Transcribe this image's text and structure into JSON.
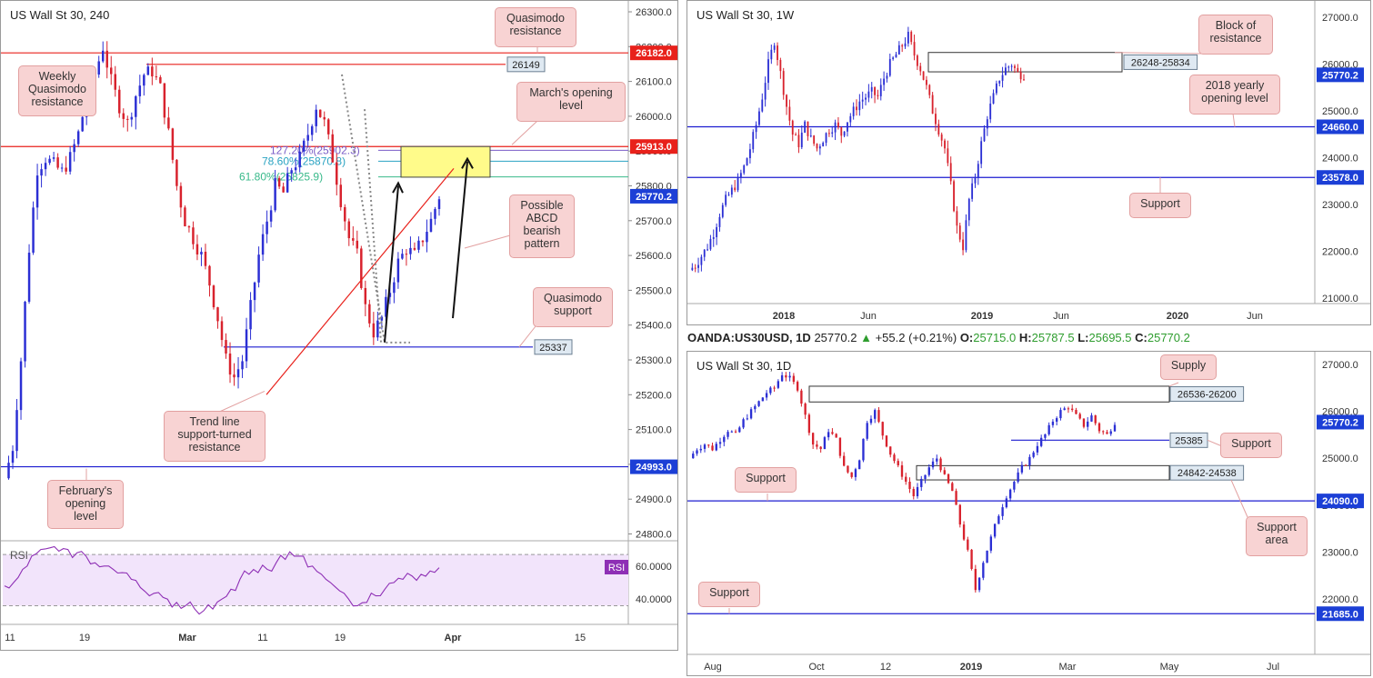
{
  "panels": {
    "h4": {
      "title": "US Wall St 30, 240",
      "price_ticks": [
        "26300.0",
        "26200.0",
        "26100.0",
        "26000.0",
        "25900.0",
        "25800.0",
        "25700.0",
        "25600.0",
        "25500.0",
        "25400.0",
        "25300.0",
        "25200.0",
        "25100.0",
        "25000.0",
        "24900.0",
        "24800.0"
      ],
      "date_ticks": [
        "11",
        "19",
        "Mar",
        "11",
        "19",
        "Apr",
        "15"
      ],
      "price_badges": [
        {
          "value": "26182.0",
          "color": "#e8211b"
        },
        {
          "value": "25913.0",
          "color": "#e8211b"
        },
        {
          "value": "25770.2",
          "color": "#1c3fd6"
        },
        {
          "value": "24993.0",
          "color": "#1c3fd6"
        }
      ],
      "level_tags": [
        "26149",
        "25337"
      ],
      "fib_labels": [
        "127.20%(25902.3)",
        "78.60%(25870.8)",
        "61.80%(25825.9)"
      ],
      "callouts": {
        "quasimodo_resistance": "Quasimodo resistance",
        "weekly_quasimodo": "Weekly Quasimodo resistance",
        "march_open": "March's opening level",
        "abcd": "Possible ABCD bearish pattern",
        "quasimodo_support": "Quasimodo support",
        "trendline": "Trend line support-turned resistance",
        "feb_open": "February's opening level"
      },
      "rsi": {
        "label": "RSI",
        "badge": "RSI",
        "ticks": [
          "60.0000",
          "40.0000"
        ]
      }
    },
    "weekly": {
      "title": "US Wall St 30, 1W",
      "price_ticks": [
        "27000.0",
        "26000.0",
        "25000.0",
        "24000.0",
        "23000.0",
        "22000.0",
        "21000.0"
      ],
      "date_ticks": [
        "2018",
        "Jun",
        "2019",
        "Jun",
        "2020",
        "Jun"
      ],
      "price_badges": [
        {
          "value": "25770.2",
          "color": "#1c3fd6"
        },
        {
          "value": "24660.0",
          "color": "#1c3fd6"
        },
        {
          "value": "23578.0",
          "color": "#1c3fd6"
        }
      ],
      "zone_tag": "26248-25834",
      "callouts": {
        "block": "Block of resistance",
        "yearly_open": "2018 yearly opening level",
        "support": "Support"
      }
    },
    "daily": {
      "title": "US Wall St 30, 1D",
      "ohlc": {
        "symbol": "OANDA:US30USD, 1D",
        "last": "25770.2",
        "change": "+55.2 (+0.21%)",
        "o_label": "O:",
        "o": "25715.0",
        "h_label": "H:",
        "h": "25787.5",
        "l_label": "L:",
        "l": "25695.5",
        "c_label": "C:",
        "c": "25770.2"
      },
      "price_ticks": [
        "27000.0",
        "26000.0",
        "25000.0",
        "24000.0",
        "23000.0",
        "22000.0"
      ],
      "date_ticks": [
        "Aug",
        "Oct",
        "12",
        "2019",
        "Mar",
        "May",
        "Jul"
      ],
      "price_badges": [
        {
          "value": "25770.2",
          "color": "#1c3fd6"
        },
        {
          "value": "24090.0",
          "color": "#1c3fd6"
        },
        {
          "value": "21685.0",
          "color": "#1c3fd6"
        }
      ],
      "zone_tags": [
        "26536-26200",
        "24842-24538"
      ],
      "level_tag": "25385",
      "callouts": {
        "supply": "Supply",
        "support_right": "Support",
        "support_left": "Support",
        "support_area": "Support area",
        "support_bottom": "Support"
      }
    }
  },
  "chart_data": [
    {
      "type": "candlestick",
      "title": "US Wall St 30, 240",
      "x_ticks": [
        "11",
        "19",
        "Mar",
        "11",
        "19",
        "Apr",
        "15"
      ],
      "ylim": [
        24750,
        26320
      ],
      "levels": {
        "quasimodo_resistance": 26182.0,
        "weekly_quasimodo": 26149,
        "march_open": 25913.0,
        "last": 25770.2,
        "quasimodo_support": 25337,
        "february_open": 24993.0
      },
      "fibonacci": {
        "127.2": 25902.3,
        "78.6": 25870.8,
        "61.8": 25825.9
      },
      "close_path": [
        24960,
        25050,
        25300,
        25620,
        25850,
        25880,
        25860,
        25840,
        25880,
        25950,
        26050,
        26120,
        26200,
        26100,
        26030,
        25980,
        26060,
        26120,
        26130,
        26080,
        25950,
        25800,
        25700,
        25650,
        25600,
        25520,
        25420,
        25300,
        25250,
        25300,
        25450,
        25600,
        25700,
        25800,
        25780,
        25850,
        25880,
        25950,
        26030,
        25980,
        25880,
        25760,
        25650,
        25600,
        25450,
        25380,
        25420,
        25500,
        25580,
        25620,
        25600,
        25650,
        25700,
        25770.2
      ],
      "rsi": {
        "ylim": [
          28,
          72
        ],
        "ticks": [
          60,
          40
        ],
        "values": [
          48,
          50,
          58,
          66,
          70,
          71,
          69,
          70,
          68,
          66,
          62,
          60,
          58,
          56,
          52,
          47,
          42,
          44,
          40,
          38,
          36,
          34,
          33,
          34,
          40,
          46,
          52,
          55,
          56,
          58,
          62,
          64,
          66,
          66,
          60,
          55,
          50,
          45,
          40,
          36,
          38,
          42,
          46,
          50,
          52,
          54,
          55,
          57,
          59
        ]
      }
    },
    {
      "type": "candlestick",
      "title": "US Wall St 30, 1W",
      "x_ticks": [
        "2018",
        "Jun",
        "2019",
        "Jun",
        "2020",
        "Jun"
      ],
      "ylim": [
        20900,
        27300
      ],
      "levels": {
        "block_high": 26248,
        "block_low": 25834,
        "yearly_open_2018": 24660.0,
        "support": 23578.0,
        "last": 25770.2
      },
      "close_path": [
        21600,
        21700,
        21900,
        22100,
        22400,
        22800,
        23100,
        23300,
        23500,
        23800,
        24200,
        24700,
        25300,
        26000,
        26500,
        25800,
        25100,
        24500,
        24300,
        24700,
        24400,
        24200,
        24400,
        24600,
        24700,
        24500,
        24800,
        25000,
        25200,
        25300,
        25400,
        25300,
        25700,
        26000,
        26200,
        26400,
        26600,
        26200,
        25900,
        25500,
        25000,
        24600,
        24200,
        23400,
        22500,
        22100,
        23100,
        23600,
        24300,
        24900,
        25300,
        25700,
        25900,
        26000,
        25800,
        25770.2
      ]
    },
    {
      "type": "candlestick",
      "title": "US Wall St 30, 1D",
      "x_ticks": [
        "Aug",
        "Oct",
        "12",
        "2019",
        "Mar",
        "May",
        "Jul"
      ],
      "ylim": [
        21400,
        27200
      ],
      "levels": {
        "supply_high": 26536,
        "supply_low": 26200,
        "support": 25385,
        "support_area_high": 24842,
        "support_area_low": 24538,
        "support_24090": 24090.0,
        "support_21685": 21685.0,
        "last": 25770.2
      },
      "close_path": [
        25000,
        25200,
        25300,
        25200,
        25400,
        25600,
        25500,
        25800,
        26000,
        26200,
        26400,
        26500,
        26800,
        26700,
        26500,
        25900,
        25300,
        25200,
        25600,
        25400,
        24800,
        24600,
        25000,
        25800,
        26000,
        25500,
        25100,
        24800,
        24500,
        24200,
        24500,
        24800,
        25000,
        24600,
        24300,
        23600,
        23000,
        22200,
        22800,
        23300,
        23800,
        24200,
        24500,
        24800,
        25000,
        25300,
        25500,
        25800,
        26000,
        26100,
        25900,
        25700,
        25900,
        25600,
        25500,
        25770.2
      ]
    }
  ]
}
